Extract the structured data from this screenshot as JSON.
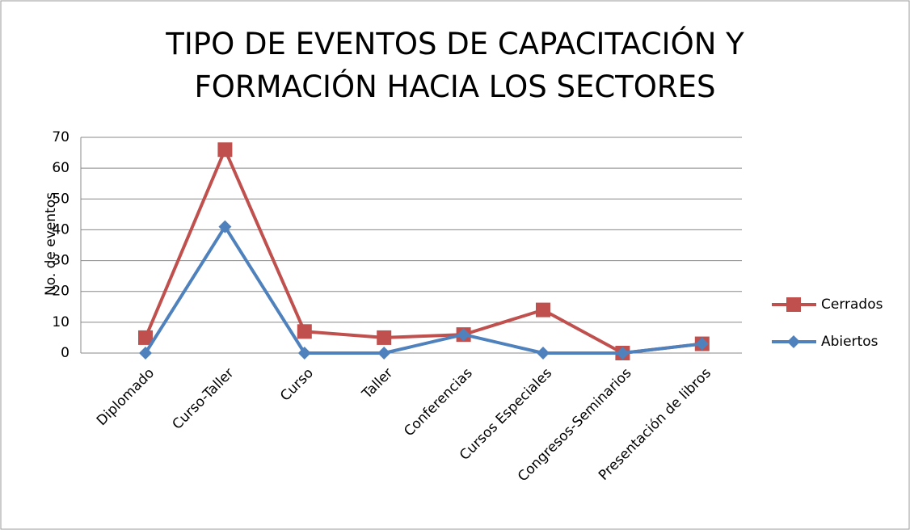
{
  "chart_data": {
    "type": "line",
    "title": "TIPO DE EVENTOS DE CAPACITACIÓN Y FORMACIÓN HACIA LOS SECTORES",
    "y_label": "No. de eventos",
    "categories": [
      "Diplomado",
      "Curso-Taller",
      "Curso",
      "Taller",
      "Conferencias",
      "Cursos Especiales",
      "Congresos-Seminarios",
      "Presentación de libros"
    ],
    "series": [
      {
        "name": "Cerrados",
        "color": "#c0504d",
        "marker": "square",
        "values": [
          5,
          66,
          7,
          5,
          6,
          14,
          0,
          3
        ]
      },
      {
        "name": "Abiertos",
        "color": "#4f81bd",
        "marker": "diamond",
        "values": [
          0,
          41,
          0,
          0,
          6,
          0,
          0,
          3
        ]
      }
    ],
    "ylim": [
      0,
      70
    ],
    "yticks": [
      0,
      10,
      20,
      30,
      40,
      50,
      60,
      70
    ],
    "grid": true,
    "legend": "right"
  }
}
